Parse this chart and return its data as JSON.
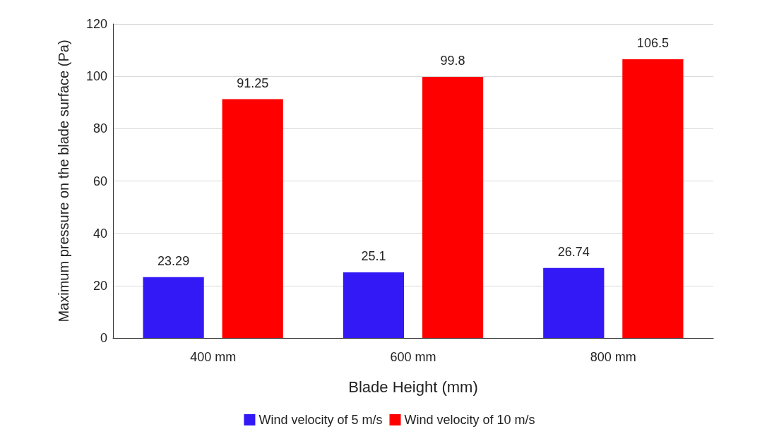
{
  "chart_data": {
    "type": "bar",
    "xlabel": "Blade Height (mm)",
    "ylabel": "Maximum pressure on the blade surface (Pa)",
    "categories": [
      "400 mm",
      "600 mm",
      "800 mm"
    ],
    "series": [
      {
        "name": "Wind velocity of 5 m/s",
        "color": "#3219f5",
        "values": [
          23.29,
          25.1,
          26.74
        ]
      },
      {
        "name": "Wind velocity of 10 m/s",
        "color": "#ff0000",
        "values": [
          91.25,
          99.8,
          106.5
        ]
      }
    ],
    "ylim": [
      0,
      120
    ],
    "yticks": [
      0,
      20,
      40,
      60,
      80,
      100,
      120
    ],
    "grid": "y",
    "legend": "bottom",
    "data_labels": true
  }
}
